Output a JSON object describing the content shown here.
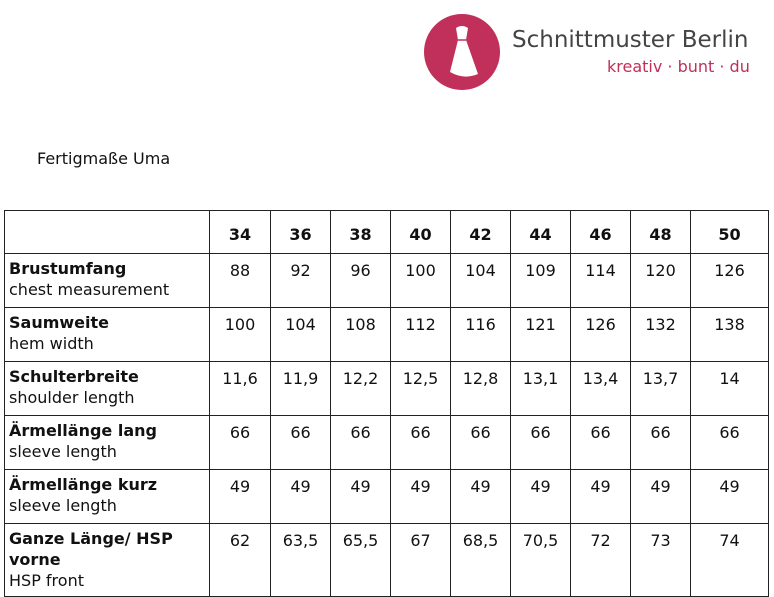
{
  "logo": {
    "name": "Schnittmuster Berlin",
    "tagline": "kreativ · bunt · du"
  },
  "title": "Fertigmaße Uma",
  "table": {
    "sizes": [
      "34",
      "36",
      "38",
      "40",
      "42",
      "44",
      "46",
      "48",
      "50"
    ],
    "rows": [
      {
        "label": "Brustumfang",
        "sublabel": "chest measurement",
        "values": [
          "88",
          "92",
          "96",
          "100",
          "104",
          "109",
          "114",
          "120",
          "126"
        ]
      },
      {
        "label": "Saumweite",
        "sublabel": "hem width",
        "values": [
          "100",
          "104",
          "108",
          "112",
          "116",
          "121",
          "126",
          "132",
          "138"
        ]
      },
      {
        "label": "Schulterbreite",
        "sublabel": "shoulder length",
        "values": [
          "11,6",
          "11,9",
          "12,2",
          "12,5",
          "12,8",
          "13,1",
          "13,4",
          "13,7",
          "14"
        ]
      },
      {
        "label": "Ärmellänge lang",
        "sublabel": "sleeve length",
        "values": [
          "66",
          "66",
          "66",
          "66",
          "66",
          "66",
          "66",
          "66",
          "66"
        ]
      },
      {
        "label": "Ärmellänge kurz",
        "sublabel": "sleeve length",
        "values": [
          "49",
          "49",
          "49",
          "49",
          "49",
          "49",
          "49",
          "49",
          "49"
        ]
      },
      {
        "label": "Ganze Länge/ HSP vorne",
        "sublabel": "HSP front",
        "values": [
          "62",
          "63,5",
          "65,5",
          "67",
          "68,5",
          "70,5",
          "72",
          "73",
          "74"
        ]
      }
    ]
  }
}
